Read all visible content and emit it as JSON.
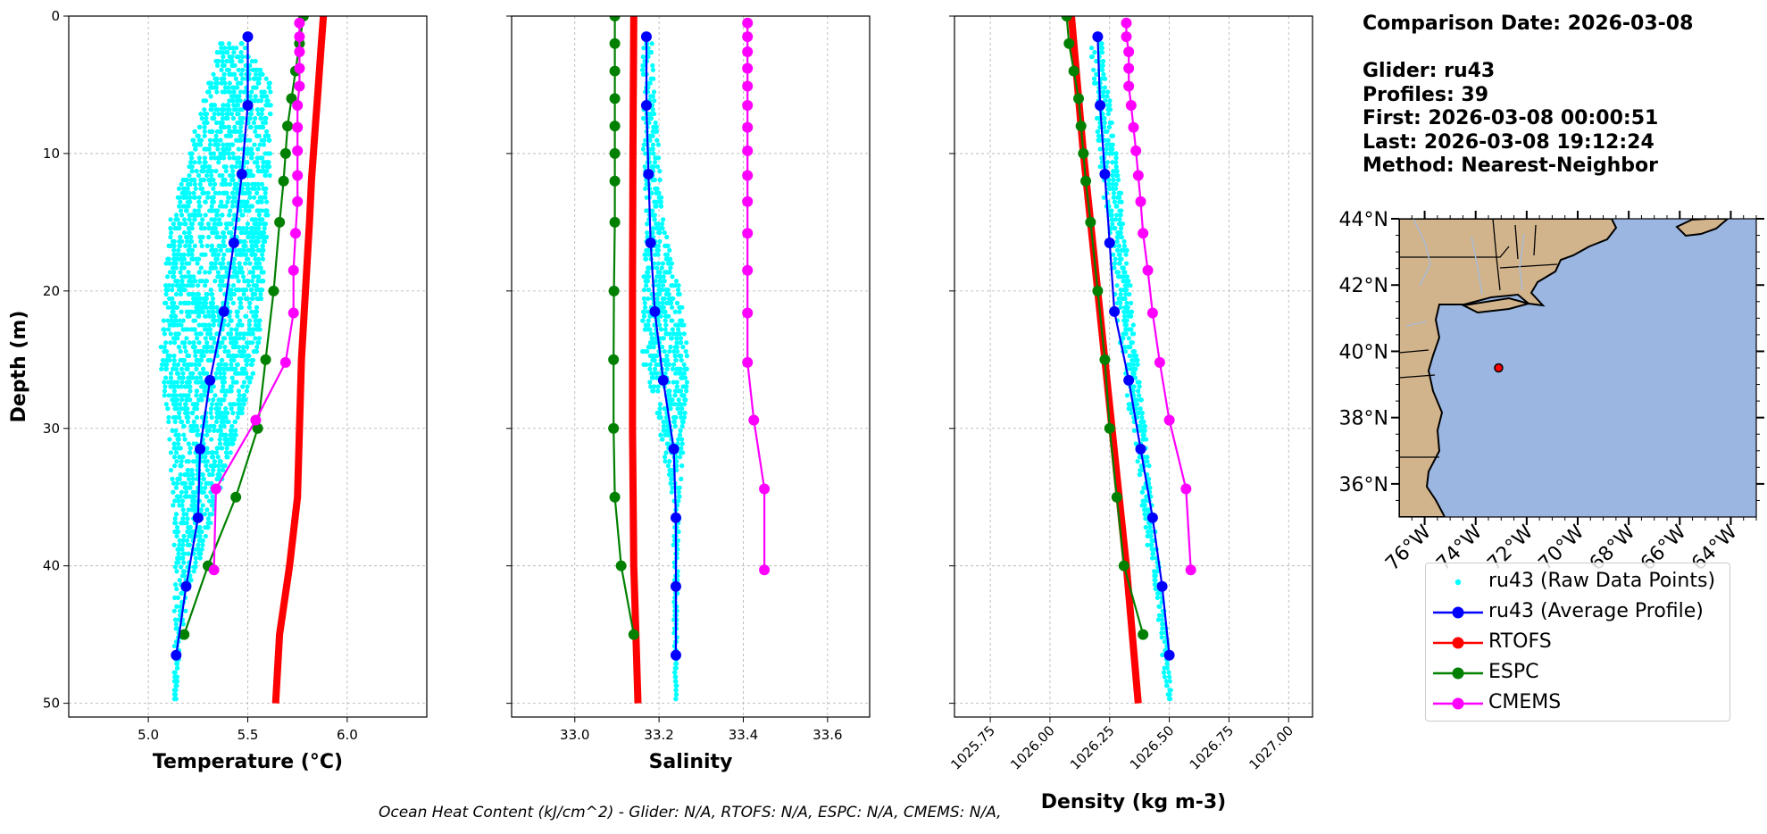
{
  "info": {
    "comparison_date": "Comparison Date: 2026-03-08",
    "glider": "Glider: ru43",
    "profiles": "Profiles: 39",
    "first": "First: 2026-03-08 00:00:51",
    "last": "Last: 2026-03-08 19:12:24",
    "method": "Method: Nearest-Neighbor"
  },
  "footer": "Ocean Heat Content (kJ/cm^2) - Glider: N/A,  RTOFS: N/A,  ESPC: N/A,  CMEMS: N/A,",
  "legend": [
    {
      "label": "ru43 (Raw Data Points)",
      "color": "#00ffff",
      "style": "dot"
    },
    {
      "label": "ru43 (Average Profile)",
      "color": "#0000ff",
      "style": "line-marker"
    },
    {
      "label": "RTOFS",
      "color": "#ff0000",
      "style": "line-marker"
    },
    {
      "label": "ESPC",
      "color": "#008000",
      "style": "line-marker"
    },
    {
      "label": "CMEMS",
      "color": "#ff00ff",
      "style": "line-marker"
    }
  ],
  "colors": {
    "raw": "#00ffff",
    "glider": "#0000ff",
    "rtofs": "#ff0000",
    "espc": "#008000",
    "cmems": "#ff00ff",
    "land": "#d2b48c",
    "ocean": "#9ab6e1"
  },
  "chart_data": [
    {
      "type": "line",
      "xlabel": "Temperature (°C)",
      "ylabel": "Depth (m)",
      "xlim": [
        4.6,
        6.4
      ],
      "ylim": [
        51,
        0
      ],
      "xticks": [
        5.0,
        5.5,
        6.0
      ],
      "xtick_labels": [
        "5.0",
        "5.5",
        "6.0"
      ],
      "yticks": [
        0,
        10,
        20,
        30,
        40,
        50
      ],
      "ytick_labels": [
        "0",
        "10",
        "20",
        "30",
        "40",
        "50"
      ],
      "grid": true,
      "raw_envelope": {
        "depth": [
          2,
          5,
          10,
          15,
          20,
          25,
          30,
          35,
          38,
          42,
          46,
          50
        ],
        "min": [
          5.35,
          5.3,
          5.2,
          5.1,
          5.08,
          5.06,
          5.1,
          5.12,
          5.13,
          5.13,
          5.13,
          5.13
        ],
        "max": [
          5.48,
          5.62,
          5.62,
          5.6,
          5.58,
          5.55,
          5.45,
          5.35,
          5.3,
          5.2,
          5.16,
          5.14
        ]
      },
      "series": [
        {
          "name": "ru43 (Average Profile)",
          "key": "glider",
          "depth": [
            1.5,
            6.5,
            11.5,
            16.5,
            21.5,
            26.5,
            31.5,
            36.5,
            41.5,
            46.5
          ],
          "values": [
            5.5,
            5.5,
            5.47,
            5.43,
            5.38,
            5.31,
            5.26,
            5.25,
            5.19,
            5.14
          ]
        },
        {
          "name": "RTOFS",
          "key": "rtofs",
          "depth": [
            0,
            2,
            4,
            6,
            8,
            10,
            12,
            15,
            20,
            25,
            30,
            35,
            40,
            45,
            50
          ],
          "values": [
            5.88,
            5.87,
            5.86,
            5.85,
            5.84,
            5.83,
            5.82,
            5.81,
            5.79,
            5.77,
            5.76,
            5.75,
            5.71,
            5.66,
            5.64
          ]
        },
        {
          "name": "ESPC",
          "key": "espc",
          "depth": [
            0,
            2,
            4,
            6,
            8,
            10,
            12,
            15,
            20,
            25,
            30,
            35,
            40,
            45
          ],
          "values": [
            5.78,
            5.76,
            5.74,
            5.72,
            5.7,
            5.69,
            5.68,
            5.66,
            5.63,
            5.59,
            5.55,
            5.44,
            5.3,
            5.18
          ]
        },
        {
          "name": "CMEMS",
          "key": "cmems",
          "depth": [
            0.5,
            1.5,
            2.6,
            3.8,
            5.1,
            6.5,
            8.1,
            9.8,
            11.6,
            13.5,
            15.8,
            18.5,
            21.6,
            25.2,
            29.4,
            34.4,
            40.3
          ],
          "values": [
            5.76,
            5.76,
            5.76,
            5.76,
            5.76,
            5.75,
            5.75,
            5.75,
            5.75,
            5.75,
            5.74,
            5.73,
            5.73,
            5.69,
            5.54,
            5.34,
            5.33
          ]
        }
      ]
    },
    {
      "type": "line",
      "xlabel": "Salinity",
      "xlim": [
        32.85,
        33.7
      ],
      "ylim": [
        51,
        0
      ],
      "xticks": [
        33.0,
        33.2,
        33.4,
        33.6
      ],
      "xtick_labels": [
        "33.0",
        "33.2",
        "33.4",
        "33.6"
      ],
      "grid": true,
      "raw_envelope": {
        "depth": [
          2,
          10,
          15,
          20,
          25,
          30,
          35,
          40,
          45,
          50
        ],
        "min": [
          33.16,
          33.16,
          33.17,
          33.16,
          33.16,
          33.2,
          33.23,
          33.235,
          33.235,
          33.238
        ],
        "max": [
          33.185,
          33.2,
          33.21,
          33.25,
          33.27,
          33.26,
          33.25,
          33.245,
          33.243,
          33.242
        ]
      },
      "series": [
        {
          "name": "ru43 (Average Profile)",
          "key": "glider",
          "depth": [
            1.5,
            6.5,
            11.5,
            16.5,
            21.5,
            26.5,
            31.5,
            36.5,
            41.5,
            46.5
          ],
          "values": [
            33.17,
            33.17,
            33.175,
            33.18,
            33.19,
            33.21,
            33.235,
            33.24,
            33.24,
            33.24
          ]
        },
        {
          "name": "RTOFS",
          "key": "rtofs",
          "depth": [
            0,
            10,
            20,
            30,
            40,
            45,
            50
          ],
          "values": [
            33.14,
            33.138,
            33.137,
            33.137,
            33.14,
            33.145,
            33.15
          ]
        },
        {
          "name": "ESPC",
          "key": "espc",
          "depth": [
            0,
            2,
            4,
            6,
            8,
            10,
            12,
            15,
            20,
            25,
            30,
            35,
            40,
            45
          ],
          "values": [
            33.095,
            33.095,
            33.095,
            33.095,
            33.095,
            33.095,
            33.095,
            33.095,
            33.093,
            33.092,
            33.092,
            33.095,
            33.11,
            33.14
          ]
        },
        {
          "name": "CMEMS",
          "key": "cmems",
          "depth": [
            0.5,
            1.5,
            2.6,
            3.8,
            5.1,
            6.5,
            8.1,
            9.8,
            11.6,
            13.5,
            15.8,
            18.5,
            21.6,
            25.2,
            29.4,
            34.4,
            40.3
          ],
          "values": [
            33.41,
            33.41,
            33.41,
            33.41,
            33.41,
            33.41,
            33.41,
            33.41,
            33.41,
            33.41,
            33.41,
            33.41,
            33.41,
            33.41,
            33.425,
            33.45,
            33.45
          ]
        }
      ]
    },
    {
      "type": "line",
      "xlabel": "Density (kg m-3)",
      "xlim": [
        1025.6,
        1027.1
      ],
      "ylim": [
        51,
        0
      ],
      "xticks": [
        1025.75,
        1026.0,
        1026.25,
        1026.5,
        1026.75,
        1027.0
      ],
      "xtick_labels": [
        "1025.75",
        "1026.00",
        "1026.25",
        "1026.50",
        "1026.75",
        "1027.00"
      ],
      "grid": true,
      "raw_envelope": {
        "depth": [
          2,
          10,
          15,
          20,
          25,
          30,
          35,
          40,
          45,
          50
        ],
        "min": [
          1026.17,
          1026.2,
          1026.24,
          1026.27,
          1026.3,
          1026.34,
          1026.38,
          1026.42,
          1026.46,
          1026.49
        ],
        "max": [
          1026.22,
          1026.28,
          1026.31,
          1026.34,
          1026.37,
          1026.4,
          1026.43,
          1026.46,
          1026.49,
          1026.51
        ]
      },
      "series": [
        {
          "name": "ru43 (Average Profile)",
          "key": "glider",
          "depth": [
            1.5,
            6.5,
            11.5,
            16.5,
            21.5,
            26.5,
            31.5,
            36.5,
            41.5,
            46.5
          ],
          "values": [
            1026.2,
            1026.21,
            1026.23,
            1026.25,
            1026.27,
            1026.33,
            1026.38,
            1026.43,
            1026.47,
            1026.5
          ]
        },
        {
          "name": "RTOFS",
          "key": "rtofs",
          "depth": [
            0,
            10,
            20,
            30,
            40,
            50
          ],
          "values": [
            1026.09,
            1026.14,
            1026.2,
            1026.26,
            1026.32,
            1026.37
          ]
        },
        {
          "name": "ESPC",
          "key": "espc",
          "depth": [
            0,
            2,
            4,
            6,
            8,
            10,
            12,
            15,
            20,
            25,
            30,
            35,
            40,
            45
          ],
          "values": [
            1026.07,
            1026.08,
            1026.1,
            1026.12,
            1026.13,
            1026.14,
            1026.15,
            1026.17,
            1026.2,
            1026.23,
            1026.25,
            1026.28,
            1026.31,
            1026.39
          ]
        },
        {
          "name": "CMEMS",
          "key": "cmems",
          "depth": [
            0.5,
            1.5,
            2.6,
            3.8,
            5.1,
            6.5,
            8.1,
            9.8,
            11.6,
            13.5,
            15.8,
            18.5,
            21.6,
            25.2,
            29.4,
            34.4,
            40.3
          ],
          "values": [
            1026.32,
            1026.32,
            1026.33,
            1026.33,
            1026.33,
            1026.34,
            1026.35,
            1026.36,
            1026.37,
            1026.38,
            1026.39,
            1026.41,
            1026.43,
            1026.46,
            1026.5,
            1026.57,
            1026.59
          ]
        }
      ]
    },
    {
      "type": "map",
      "lon_range": [
        -77,
        -63
      ],
      "lat_range": [
        35,
        44
      ],
      "xtick_labels": [
        "76°W",
        "74°W",
        "72°W",
        "70°W",
        "68°W",
        "66°W",
        "64°W"
      ],
      "ytick_labels": [
        "44°N",
        "42°N",
        "40°N",
        "38°N",
        "36°N"
      ],
      "glider_position": {
        "lon": -73.1,
        "lat": 39.5
      }
    }
  ]
}
